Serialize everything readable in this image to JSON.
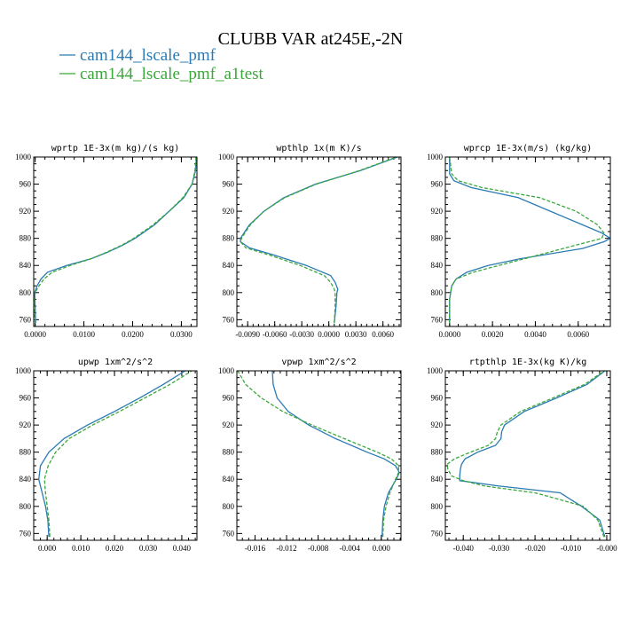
{
  "title": "CLUBB VAR at245E,-2N",
  "legend": [
    {
      "name": "cam144_lscale_pmf",
      "color": "#2a7ab5",
      "dash": "solid"
    },
    {
      "name": "cam144_lscale_pmf_a1test",
      "color": "#3aa83a",
      "dash": "dashed"
    }
  ],
  "chart_data": [
    {
      "type": "line",
      "title": "wprtp  1E-3x(m kg)/(s kg)",
      "ylim": [
        1000,
        750
      ],
      "yticks": [
        760,
        800,
        840,
        880,
        920,
        960,
        1000
      ],
      "xlim": [
        -0.0003,
        0.0332
      ],
      "xticks": [
        0.0,
        0.01,
        0.02,
        0.03
      ],
      "xticklabels": [
        "0.0000",
        "0.0100",
        "0.0200",
        "0.0300"
      ],
      "y": [
        755,
        780,
        800,
        810,
        820,
        830,
        840,
        850,
        860,
        870,
        880,
        900,
        920,
        940,
        960,
        980,
        1000
      ],
      "series": [
        {
          "values": [
            0.0001,
            0.0,
            -0.0001,
            0.0004,
            0.0012,
            0.0025,
            0.0065,
            0.0115,
            0.015,
            0.018,
            0.0205,
            0.0245,
            0.0275,
            0.0305,
            0.0322,
            0.0329,
            0.0331
          ]
        },
        {
          "values": [
            0.0,
            -0.0002,
            0.0,
            0.0008,
            0.0018,
            0.0035,
            0.0072,
            0.0115,
            0.0148,
            0.0178,
            0.0202,
            0.0242,
            0.0275,
            0.0303,
            0.0322,
            0.0328,
            0.033
          ]
        }
      ]
    },
    {
      "type": "line",
      "title": "wpthlp  1x(m K)/s",
      "ylim": [
        1000,
        750
      ],
      "yticks": [
        760,
        800,
        840,
        880,
        920,
        960,
        1000
      ],
      "xlim": [
        -0.0102,
        0.008
      ],
      "xticks": [
        -0.009,
        -0.006,
        -0.003,
        0.0,
        0.003,
        0.006
      ],
      "xticklabels": [
        "-0.0090",
        "-0.0060",
        "-0.0030",
        "0.0000",
        "0.0030",
        "0.0060"
      ],
      "y": [
        755,
        780,
        800,
        805,
        815,
        825,
        840,
        855,
        866,
        875,
        880,
        890,
        900,
        920,
        940,
        960,
        980,
        1000
      ],
      "series": [
        {
          "values": [
            0.0006,
            0.0008,
            0.0009,
            0.001,
            0.0007,
            0.0002,
            -0.0025,
            -0.006,
            -0.0088,
            -0.0098,
            -0.0098,
            -0.0093,
            -0.0088,
            -0.0072,
            -0.005,
            -0.0015,
            0.0035,
            0.0076
          ]
        },
        {
          "values": [
            0.0006,
            0.0007,
            0.0007,
            0.0006,
            0.0002,
            -0.0005,
            -0.0032,
            -0.0065,
            -0.0092,
            -0.0098,
            -0.0097,
            -0.0092,
            -0.0087,
            -0.0072,
            -0.0049,
            -0.0014,
            0.0034,
            0.0075
          ]
        }
      ]
    },
    {
      "type": "line",
      "title": "wprcp  1E-3x(m/s) (kg/kg)",
      "ylim": [
        1000,
        750
      ],
      "yticks": [
        760,
        800,
        840,
        880,
        920,
        960,
        1000
      ],
      "xlim": [
        -0.0002,
        0.0075
      ],
      "xticks": [
        0.0,
        0.002,
        0.004,
        0.006
      ],
      "xticklabels": [
        "0.0000",
        "0.0020",
        "0.0040",
        "0.0060"
      ],
      "y": [
        755,
        790,
        810,
        820,
        830,
        840,
        850,
        865,
        875,
        880,
        888,
        900,
        920,
        940,
        955,
        965,
        975,
        1000
      ],
      "series": [
        {
          "values": [
            0.0,
            0.0,
            0.0001,
            0.0003,
            0.0008,
            0.0018,
            0.0033,
            0.0062,
            0.0072,
            0.0075,
            0.0071,
            0.0062,
            0.0047,
            0.0032,
            0.001,
            0.0002,
            0.0,
            0.0
          ]
        },
        {
          "values": [
            0.0,
            0.0,
            0.0001,
            0.0003,
            0.0011,
            0.0023,
            0.0035,
            0.0053,
            0.0065,
            0.0071,
            0.0072,
            0.0069,
            0.0059,
            0.0042,
            0.0015,
            0.0004,
            0.0001,
            0.0
          ]
        }
      ]
    },
    {
      "type": "line",
      "title": "upwp  1xm^2/s^2",
      "ylim": [
        1000,
        750
      ],
      "yticks": [
        760,
        800,
        840,
        880,
        920,
        960,
        1000
      ],
      "xlim": [
        -0.004,
        0.0445
      ],
      "xticks": [
        0.0,
        0.01,
        0.02,
        0.03,
        0.04
      ],
      "xticklabels": [
        "0.000",
        "0.010",
        "0.020",
        "0.030",
        "0.040"
      ],
      "y": [
        755,
        780,
        800,
        820,
        840,
        860,
        880,
        900,
        920,
        940,
        960,
        980,
        1000
      ],
      "series": [
        {
          "values": [
            0.0005,
            0.0002,
            -0.0005,
            -0.0015,
            -0.0025,
            -0.002,
            0.0005,
            0.005,
            0.012,
            0.02,
            0.0275,
            0.0345,
            0.041
          ]
        },
        {
          "values": [
            0.0008,
            0.0005,
            0.0,
            -0.0005,
            -0.0008,
            0.0003,
            0.0025,
            0.0065,
            0.0135,
            0.0215,
            0.029,
            0.0365,
            0.043
          ]
        }
      ]
    },
    {
      "type": "line",
      "title": "vpwp  1xm^2/s^2",
      "ylim": [
        1000,
        750
      ],
      "yticks": [
        760,
        800,
        840,
        880,
        920,
        960,
        1000
      ],
      "xlim": [
        -0.0183,
        0.0025
      ],
      "xticks": [
        -0.016,
        -0.012,
        -0.008,
        -0.004,
        0.0
      ],
      "xticklabels": [
        "-0.016",
        "-0.012",
        "-0.008",
        "-0.004",
        "0.000"
      ],
      "y": [
        755,
        780,
        800,
        820,
        840,
        850,
        860,
        870,
        880,
        900,
        920,
        940,
        960,
        980,
        1000
      ],
      "series": [
        {
          "values": [
            0.0001,
            0.0002,
            0.0004,
            0.0009,
            0.0019,
            0.0023,
            0.0018,
            0.0004,
            -0.0018,
            -0.0058,
            -0.0092,
            -0.0118,
            -0.0132,
            -0.0137,
            -0.0138
          ]
        },
        {
          "values": [
            0.0002,
            0.0003,
            0.0006,
            0.0011,
            0.0018,
            0.0022,
            0.0022,
            0.0013,
            -0.0005,
            -0.0047,
            -0.0088,
            -0.0125,
            -0.0152,
            -0.0172,
            -0.0182
          ]
        }
      ]
    },
    {
      "type": "line",
      "title": "rtpthlp  1E-3x(kg K)/kg",
      "ylim": [
        1000,
        750
      ],
      "yticks": [
        760,
        800,
        840,
        880,
        920,
        960,
        1000
      ],
      "xlim": [
        -0.045,
        0.001
      ],
      "xticks": [
        -0.04,
        -0.03,
        -0.02,
        -0.01,
        0.0
      ],
      "xticklabels": [
        "-0.040",
        "-0.030",
        "-0.020",
        "-0.010",
        "-0.000"
      ],
      "y": [
        755,
        780,
        800,
        810,
        820,
        830,
        838,
        845,
        855,
        862,
        870,
        880,
        890,
        900,
        910,
        920,
        940,
        960,
        980,
        1000
      ],
      "series": [
        {
          "values": [
            -0.0005,
            -0.002,
            -0.007,
            -0.01,
            -0.013,
            -0.03,
            -0.041,
            -0.041,
            -0.0408,
            -0.0405,
            -0.0395,
            -0.036,
            -0.031,
            -0.0295,
            -0.0293,
            -0.0285,
            -0.023,
            -0.014,
            -0.0055,
            -0.0005
          ]
        },
        {
          "values": [
            -0.0008,
            -0.0025,
            -0.0065,
            -0.013,
            -0.02,
            -0.034,
            -0.04,
            -0.0433,
            -0.0443,
            -0.0445,
            -0.0425,
            -0.038,
            -0.033,
            -0.031,
            -0.0305,
            -0.0295,
            -0.024,
            -0.015,
            -0.0062,
            -0.0007
          ]
        }
      ]
    }
  ]
}
